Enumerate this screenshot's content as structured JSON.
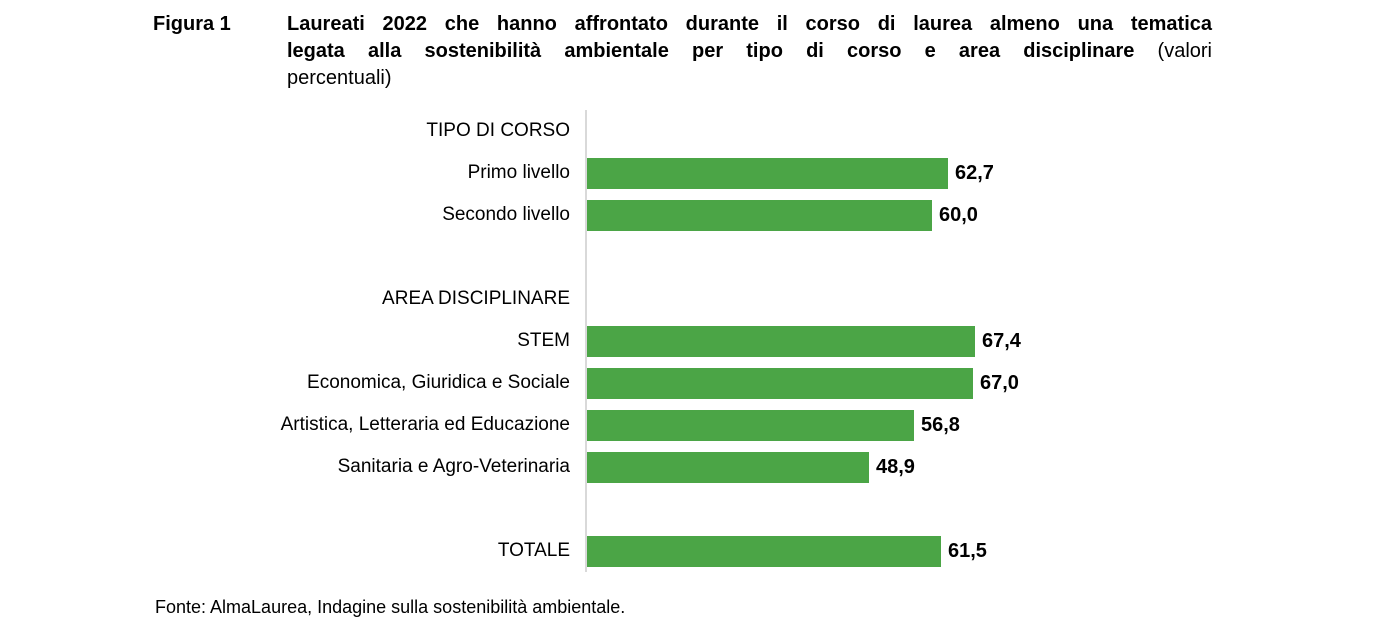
{
  "figure_label": "Figura 1",
  "title": {
    "line1": "Laureati 2022 che hanno affrontato durante il corso di laurea almeno una tematica",
    "line2_bold": "legata alla sostenibilità ambientale per tipo di corso e area disciplinare",
    "line2_regular": "(valori",
    "line3_regular": "percentuali)"
  },
  "chart_data": {
    "type": "bar",
    "orientation": "horizontal",
    "title": "Laureati 2022 che hanno affrontato durante il corso di laurea almeno una tematica legata alla sostenibilità ambientale per tipo di corso e area disciplinare (valori percentuali)",
    "xlim": [
      0,
      70
    ],
    "grid": false,
    "legend": false,
    "bar_color": "#4BA546",
    "axis_line_color": "#D9D9D9",
    "section_headers": [
      "TIPO DI CORSO",
      "AREA DISCIPLINARE"
    ],
    "categories": [
      "Primo livello",
      "Secondo livello",
      "STEM",
      "Economica, Giuridica e Sociale",
      "Artistica, Letteraria ed Educazione",
      "Sanitaria e Agro-Veterinaria",
      "TOTALE"
    ],
    "values": [
      62.7,
      60.0,
      67.4,
      67.0,
      56.8,
      48.9,
      61.5
    ],
    "value_labels": [
      "62,7",
      "60,0",
      "67,4",
      "67,0",
      "56,8",
      "48,9",
      "61,5"
    ],
    "rows": [
      {
        "type": "header",
        "label": "TIPO DI CORSO"
      },
      {
        "type": "bar",
        "label": "Primo livello",
        "value": 62.7,
        "display": "62,7"
      },
      {
        "type": "bar",
        "label": "Secondo livello",
        "value": 60.0,
        "display": "60,0"
      },
      {
        "type": "spacer",
        "label": ""
      },
      {
        "type": "header",
        "label": "AREA DISCIPLINARE"
      },
      {
        "type": "bar",
        "label": "STEM",
        "value": 67.4,
        "display": "67,4"
      },
      {
        "type": "bar",
        "label": "Economica, Giuridica e Sociale",
        "value": 67.0,
        "display": "67,0"
      },
      {
        "type": "bar",
        "label": "Artistica, Letteraria ed Educazione",
        "value": 56.8,
        "display": "56,8"
      },
      {
        "type": "bar",
        "label": "Sanitaria e Agro-Veterinaria",
        "value": 48.9,
        "display": "48,9"
      },
      {
        "type": "spacer",
        "label": ""
      },
      {
        "type": "bar",
        "label": "TOTALE",
        "value": 61.5,
        "display": "61,5"
      }
    ]
  },
  "footer": {
    "source": "Fonte: AlmaLaurea, Indagine sulla sostenibilità ambientale."
  }
}
